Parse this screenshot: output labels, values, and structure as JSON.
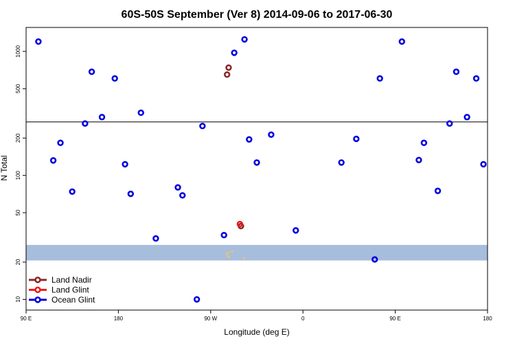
{
  "chart_data": {
    "type": "scatter",
    "title": "60S-50S September (Ver 8)   2014-09-06 to 2017-06-30",
    "xlabel": "Longitude (deg E)",
    "ylabel": "N Total",
    "xlim": [
      90,
      540
    ],
    "ylim": [
      8.2,
      1560
    ],
    "y_scale": "log",
    "x_ticks": [
      {
        "value": 90,
        "label": "90 E"
      },
      {
        "value": 180,
        "label": "180"
      },
      {
        "value": 270,
        "label": "90 W"
      },
      {
        "value": 360,
        "label": "0"
      },
      {
        "value": 450,
        "label": "90 E"
      },
      {
        "value": 540,
        "label": "180"
      }
    ],
    "y_ticks": [
      {
        "value": 10,
        "label": "10"
      },
      {
        "value": 20,
        "label": "20"
      },
      {
        "value": 50,
        "label": "50"
      },
      {
        "value": 100,
        "label": "100"
      },
      {
        "value": 200,
        "label": "200"
      },
      {
        "value": 500,
        "label": "500"
      },
      {
        "value": 1000,
        "label": "1000"
      }
    ],
    "reference_line": {
      "y": 270
    },
    "band": {
      "y_range": [
        20.6,
        27.5
      ],
      "color": "#a7bddc"
    },
    "land_marks": [
      {
        "x": 285.5,
        "y": 23.5
      },
      {
        "x": 286.5,
        "y": 22.5
      },
      {
        "x": 287.5,
        "y": 22
      },
      {
        "x": 288,
        "y": 24
      },
      {
        "x": 291,
        "y": 24.5
      },
      {
        "x": 302,
        "y": 21.5
      }
    ],
    "land_marks_color": "#f4c75b",
    "series": [
      {
        "name": "Land Nadir",
        "color": "#8b2a2a",
        "x": [
          286,
          287.5,
          299.5
        ],
        "y": [
          650,
          740,
          39
        ]
      },
      {
        "name": "Land Glint",
        "color": "#ee1c1c",
        "x": [
          298.5
        ],
        "y": [
          40.5
        ]
      },
      {
        "name": "Ocean Glint",
        "color": "#0000dd",
        "x": [
          102,
          116.5,
          123.5,
          135,
          147.5,
          154,
          164,
          176.5,
          186.5,
          192,
          202,
          216.5,
          238,
          242.5,
          256.5,
          262,
          283,
          293,
          303,
          307.5,
          315,
          329,
          353,
          397.5,
          412,
          430,
          435,
          456.5,
          473,
          478,
          491.5,
          503,
          509.5,
          520,
          529,
          536
        ],
        "y": [
          1200,
          132,
          183,
          74,
          262,
          685,
          295,
          605,
          123,
          71,
          320,
          31,
          80,
          69,
          10,
          250,
          33,
          975,
          1250,
          195,
          127,
          213,
          36,
          127,
          197,
          21,
          605,
          1200,
          133,
          183,
          75,
          262,
          685,
          295,
          605,
          123
        ]
      }
    ],
    "legend": {
      "position": "bottom-left"
    }
  }
}
